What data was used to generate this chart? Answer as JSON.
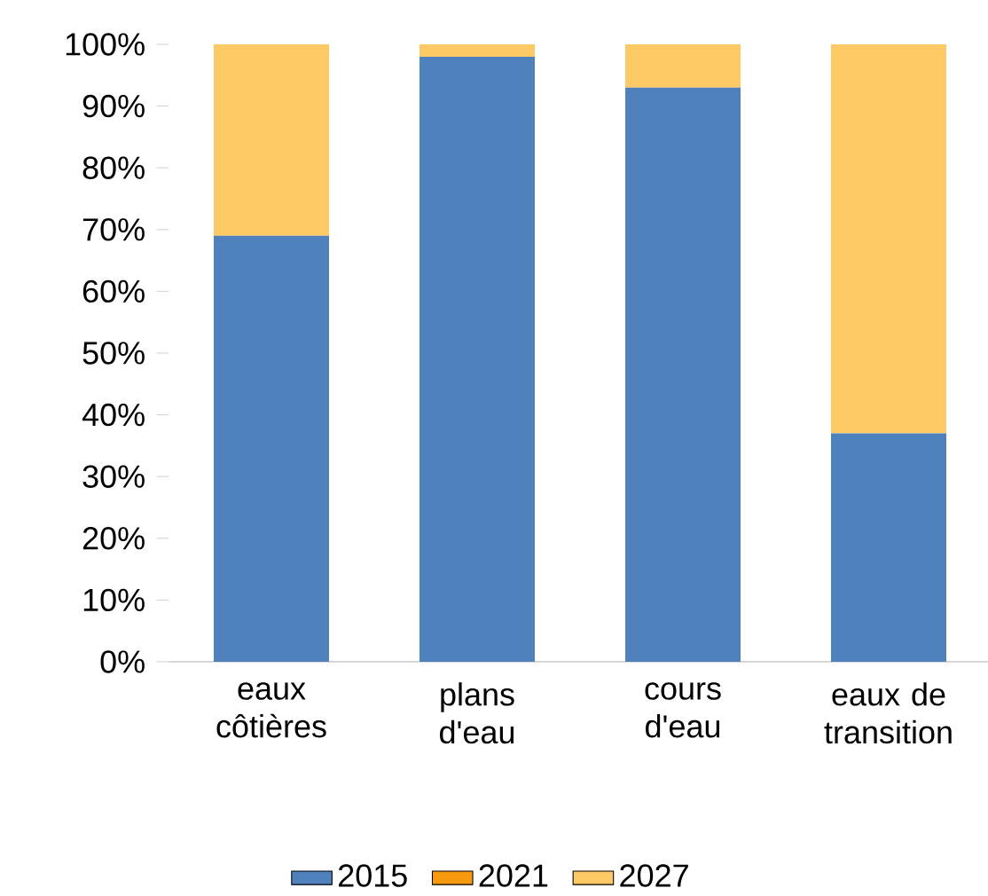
{
  "chart_data": {
    "type": "bar",
    "stacked": true,
    "categories": [
      "eaux côtières",
      "plans d'eau",
      "cours d'eau",
      "eaux de transition"
    ],
    "series": [
      {
        "name": "2015",
        "color": "#4f81bd",
        "values": [
          69,
          98,
          93,
          37
        ]
      },
      {
        "name": "2021",
        "color": "#f79a10",
        "values": [
          0,
          0,
          0,
          0
        ]
      },
      {
        "name": "2027",
        "color": "#fcc964",
        "values": [
          31,
          2,
          7,
          63
        ]
      }
    ],
    "ylim": [
      0,
      100
    ],
    "yticks": [
      {
        "value": 0,
        "label": "0%"
      },
      {
        "value": 10,
        "label": "10%"
      },
      {
        "value": 20,
        "label": "20%"
      },
      {
        "value": 30,
        "label": "30%"
      },
      {
        "value": 40,
        "label": "40%"
      },
      {
        "value": 50,
        "label": "50%"
      },
      {
        "value": 60,
        "label": "60%"
      },
      {
        "value": 70,
        "label": "70%"
      },
      {
        "value": 80,
        "label": "80%"
      },
      {
        "value": 90,
        "label": "90%"
      },
      {
        "value": 100,
        "label": "100%"
      }
    ],
    "grid": false,
    "legend": "bottom"
  }
}
